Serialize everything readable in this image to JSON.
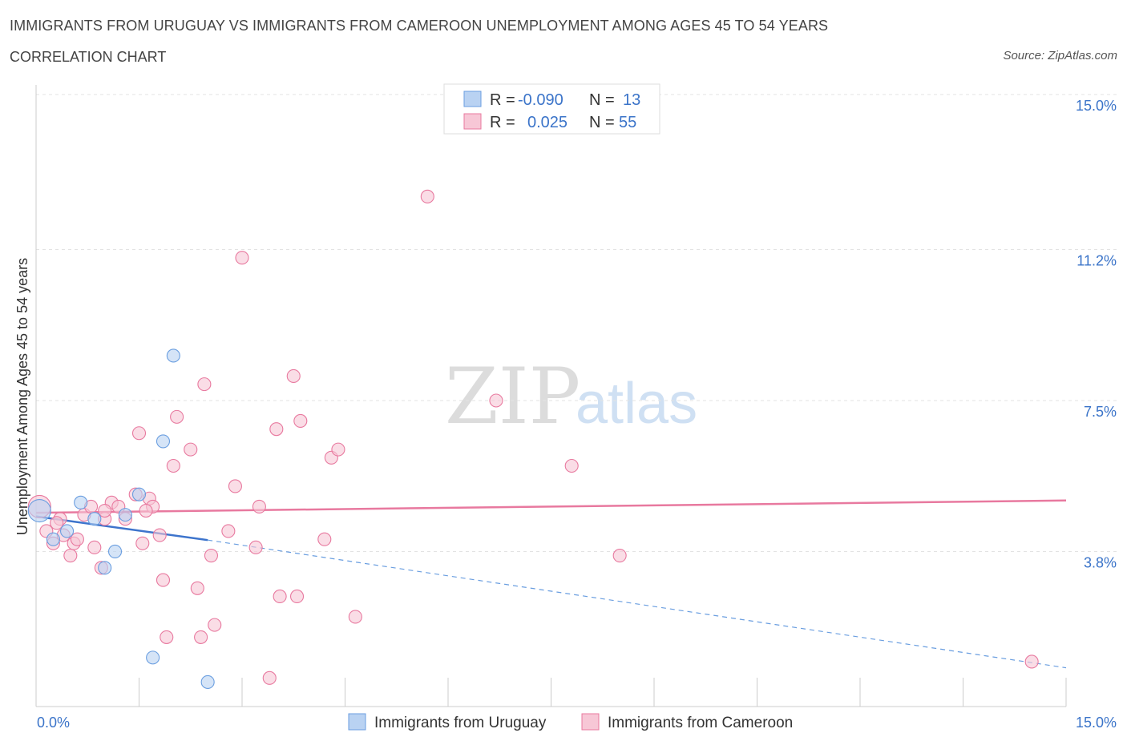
{
  "header": {
    "title": "IMMIGRANTS FROM URUGUAY VS IMMIGRANTS FROM CAMEROON UNEMPLOYMENT AMONG AGES 45 TO 54 YEARS",
    "subtitle": "CORRELATION CHART",
    "source": "Source: ZipAtlas.com"
  },
  "watermark": {
    "zip": "ZIP",
    "atlas": "atlas"
  },
  "legend": {
    "rows": [
      {
        "r_label": "R =",
        "r_value": "-0.090",
        "n_label": "N =",
        "n_value": "13",
        "color": "#aac8f0"
      },
      {
        "r_label": "R =",
        "r_value": "0.025",
        "n_label": "N =",
        "n_value": "55",
        "color": "#f4b8cb"
      }
    ]
  },
  "chart_data": {
    "type": "scatter",
    "title": "IMMIGRANTS FROM URUGUAY VS IMMIGRANTS FROM CAMEROON UNEMPLOYMENT AMONG AGES 45 TO 54 YEARS",
    "xlabel": "",
    "ylabel": "Unemployment Among Ages 45 to 54 years",
    "xlim": [
      0,
      15
    ],
    "ylim": [
      0,
      15
    ],
    "x_tick_labels": [
      "0.0%",
      "15.0%"
    ],
    "y_ticks": [
      3.8,
      7.5,
      11.2,
      15.0
    ],
    "y_tick_labels": [
      "3.8%",
      "7.5%",
      "11.2%",
      "15.0%"
    ],
    "series": [
      {
        "name": "Immigrants from Uruguay",
        "color": "#6a9ee0",
        "fill": "#b9d2f2",
        "points": [
          [
            0.05,
            4.8
          ],
          [
            0.25,
            4.1
          ],
          [
            0.45,
            4.3
          ],
          [
            0.65,
            5.0
          ],
          [
            0.85,
            4.6
          ],
          [
            1.15,
            3.8
          ],
          [
            1.0,
            3.4
          ],
          [
            1.3,
            4.7
          ],
          [
            1.5,
            5.2
          ],
          [
            1.85,
            6.5
          ],
          [
            2.0,
            8.6
          ],
          [
            1.7,
            1.2
          ],
          [
            2.5,
            0.6
          ]
        ],
        "trend": {
          "x": [
            0.0,
            2.5
          ],
          "y": [
            4.66,
            4.08
          ]
        },
        "trend_dashed": {
          "x": [
            2.5,
            15.0
          ],
          "y": [
            4.08,
            0.95
          ]
        }
      },
      {
        "name": "Immigrants from Cameroon",
        "color": "#e8799f",
        "fill": "#f7c7d6",
        "points": [
          [
            0.05,
            4.9
          ],
          [
            0.15,
            4.3
          ],
          [
            0.25,
            4.0
          ],
          [
            0.35,
            4.6
          ],
          [
            0.4,
            4.2
          ],
          [
            0.5,
            3.7
          ],
          [
            0.55,
            4.0
          ],
          [
            0.7,
            4.7
          ],
          [
            0.8,
            4.9
          ],
          [
            0.85,
            3.9
          ],
          [
            0.95,
            3.4
          ],
          [
            1.0,
            4.6
          ],
          [
            1.1,
            5.0
          ],
          [
            1.2,
            4.9
          ],
          [
            1.3,
            4.6
          ],
          [
            1.45,
            5.2
          ],
          [
            1.5,
            6.7
          ],
          [
            1.55,
            4.0
          ],
          [
            1.65,
            5.1
          ],
          [
            1.7,
            4.9
          ],
          [
            1.8,
            4.2
          ],
          [
            1.85,
            3.1
          ],
          [
            1.9,
            1.7
          ],
          [
            2.0,
            5.9
          ],
          [
            2.05,
            7.1
          ],
          [
            2.25,
            6.3
          ],
          [
            2.35,
            2.9
          ],
          [
            2.4,
            1.7
          ],
          [
            2.45,
            7.9
          ],
          [
            2.55,
            3.7
          ],
          [
            2.6,
            2.0
          ],
          [
            2.8,
            4.3
          ],
          [
            2.9,
            5.4
          ],
          [
            3.0,
            11.0
          ],
          [
            3.2,
            3.9
          ],
          [
            3.25,
            4.9
          ],
          [
            3.4,
            0.7
          ],
          [
            3.5,
            6.8
          ],
          [
            3.55,
            2.7
          ],
          [
            3.75,
            8.1
          ],
          [
            3.8,
            2.7
          ],
          [
            3.85,
            7.0
          ],
          [
            4.2,
            4.1
          ],
          [
            4.3,
            6.1
          ],
          [
            4.4,
            6.3
          ],
          [
            4.65,
            2.2
          ],
          [
            5.7,
            12.5
          ],
          [
            6.7,
            7.5
          ],
          [
            7.8,
            5.9
          ],
          [
            8.5,
            3.7
          ],
          [
            14.5,
            1.1
          ],
          [
            1.0,
            4.8
          ],
          [
            0.3,
            4.5
          ],
          [
            0.6,
            4.1
          ],
          [
            1.6,
            4.8
          ]
        ],
        "trend": {
          "x": [
            0.0,
            15.0
          ],
          "y": [
            4.75,
            5.05
          ]
        }
      }
    ]
  },
  "bottom_legend": {
    "items": [
      {
        "label": "Immigrants from Uruguay",
        "color": "#b9d2f2"
      },
      {
        "label": "Immigrants from Cameroon",
        "color": "#f7c7d6"
      }
    ]
  }
}
